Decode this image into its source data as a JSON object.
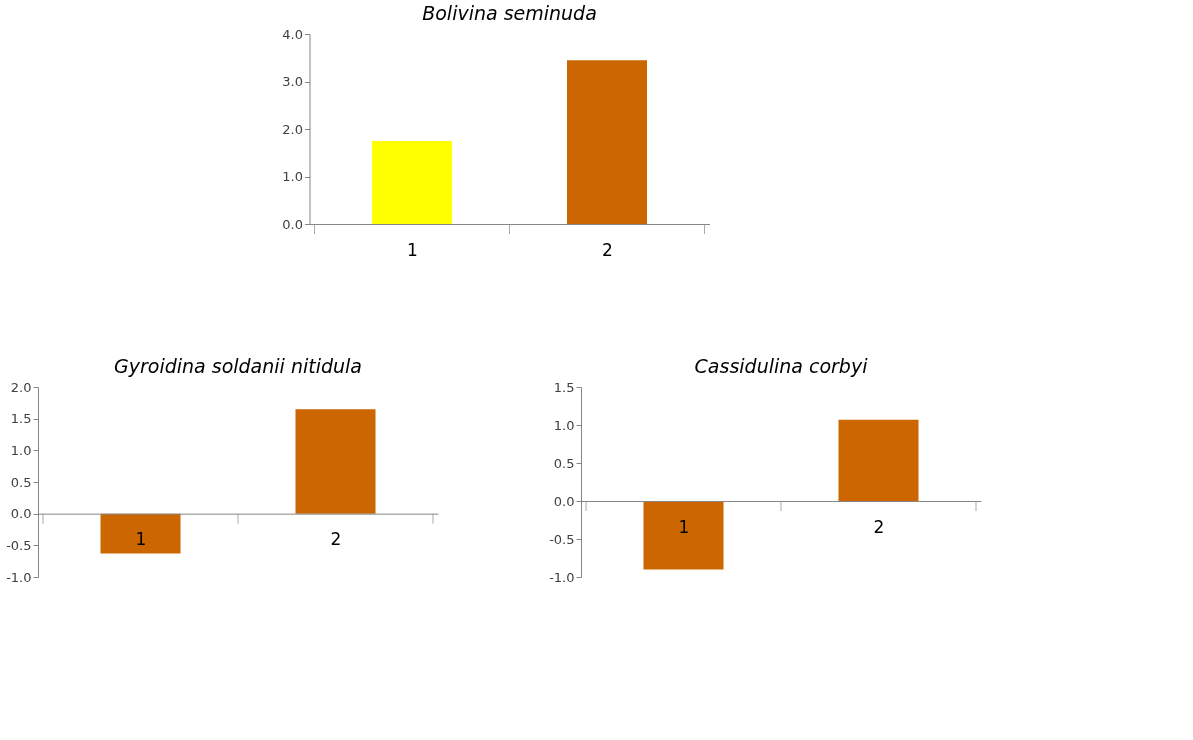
{
  "chart_data": [
    {
      "type": "bar",
      "title": "Bolivina seminuda",
      "categories": [
        "1",
        "2"
      ],
      "values": [
        1.75,
        3.45
      ],
      "colors": [
        "#ffff00",
        "#cc6600"
      ],
      "ylim": [
        0,
        4
      ],
      "yticks": [
        {
          "value": 0,
          "label": "0.0"
        },
        {
          "value": 1,
          "label": "1.0"
        },
        {
          "value": 2,
          "label": "2.0"
        },
        {
          "value": 3,
          "label": "3.0"
        },
        {
          "value": 4,
          "label": "4.0"
        }
      ],
      "grid": false
    },
    {
      "type": "bar",
      "title": "Gyroidina soldanii nitidula",
      "categories": [
        "1",
        "2"
      ],
      "values": [
        -0.63,
        1.65
      ],
      "colors": [
        "#cc6600",
        "#cc6600"
      ],
      "ylim": [
        -1,
        2
      ],
      "yticks": [
        {
          "value": -1,
          "label": "-1.0"
        },
        {
          "value": -0.5,
          "label": "-0.5"
        },
        {
          "value": 0,
          "label": "0.0"
        },
        {
          "value": 0.5,
          "label": "0.5"
        },
        {
          "value": 1,
          "label": "1.0"
        },
        {
          "value": 1.5,
          "label": "1.5"
        },
        {
          "value": 2,
          "label": "2.0"
        }
      ],
      "grid": false
    },
    {
      "type": "bar",
      "title": "Cassidulina corbyi",
      "categories": [
        "1",
        "2"
      ],
      "values": [
        -0.9,
        1.07
      ],
      "colors": [
        "#cc6600",
        "#cc6600"
      ],
      "ylim": [
        -1,
        1.5
      ],
      "yticks": [
        {
          "value": -1,
          "label": "-1.0"
        },
        {
          "value": -0.5,
          "label": "-0.5"
        },
        {
          "value": 0,
          "label": "0.0"
        },
        {
          "value": 0.5,
          "label": "0.5"
        },
        {
          "value": 1,
          "label": "1.0"
        },
        {
          "value": 1.5,
          "label": "1.5"
        }
      ],
      "grid": false
    }
  ]
}
